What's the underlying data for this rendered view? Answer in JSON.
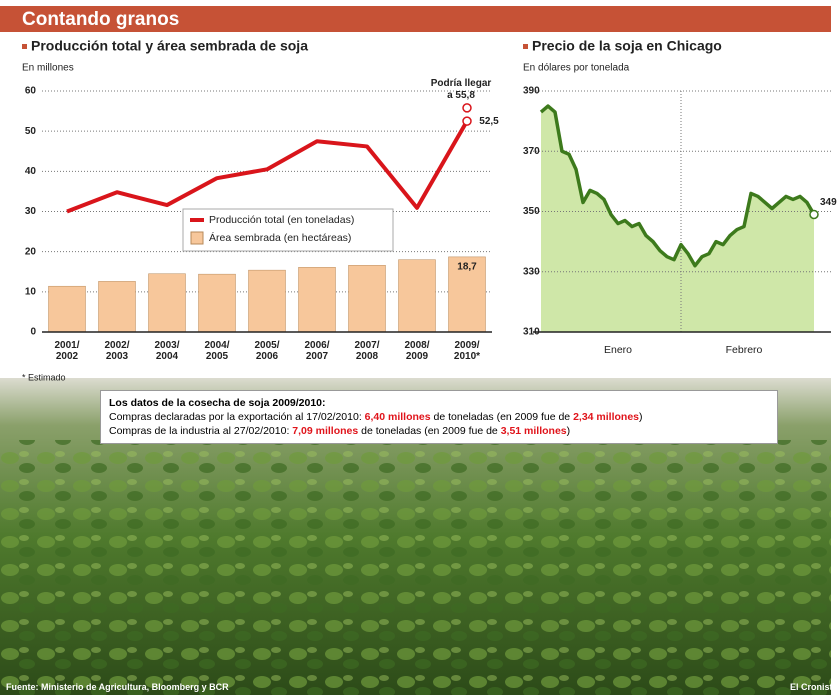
{
  "header": {
    "title": "Contando granos"
  },
  "chart_data": [
    {
      "type": "combo",
      "title": "Producción total y área sembrada de soja",
      "y_label": "En millones",
      "categories": [
        "2001/ 2002",
        "2002/ 2003",
        "2003/ 2004",
        "2004/ 2005",
        "2005/ 2006",
        "2006/ 2007",
        "2007/ 2008",
        "2008/ 2009",
        "2009/ 2010*"
      ],
      "series": [
        {
          "name": "Producción total (en toneladas)",
          "type": "line",
          "color": "#d9151b",
          "values": [
            30,
            34.8,
            31.6,
            38.3,
            40.5,
            47.5,
            46.2,
            30.9,
            52.5
          ],
          "value_labels": [
            null,
            null,
            null,
            null,
            null,
            null,
            null,
            null,
            "52,5"
          ]
        },
        {
          "name": "Área sembrada (en hectáreas)",
          "type": "bar",
          "color": "#f7c79b",
          "values": [
            11.4,
            12.6,
            14.5,
            14.4,
            15.4,
            16.1,
            16.6,
            18.0,
            18.7
          ],
          "value_labels": [
            null,
            null,
            null,
            null,
            null,
            null,
            null,
            null,
            "18,7"
          ]
        }
      ],
      "projection_value": 55.8,
      "annotation": "Podría llegar a 55,8",
      "ylim": [
        0,
        60
      ],
      "yticks": [
        0,
        10,
        20,
        30,
        40,
        50,
        60
      ],
      "grid": true,
      "note": "* Estimado"
    },
    {
      "type": "area",
      "title": "Precio de la soja en Chicago",
      "y_label": "En dólares por tonelada",
      "color": "#cfe7a8",
      "line_color": "#3d7a1c",
      "categories": [
        null,
        null,
        null,
        null,
        null,
        null,
        null,
        null,
        null,
        null,
        null,
        "Enero",
        null,
        null,
        null,
        null,
        null,
        null,
        null,
        null,
        null,
        null,
        null,
        null,
        null,
        null,
        null,
        null,
        null,
        "Febrero",
        null,
        null,
        null,
        null,
        null,
        null,
        null,
        null,
        null,
        null
      ],
      "values": [
        383,
        385,
        383,
        370,
        369,
        364,
        353,
        357,
        356,
        354,
        349,
        346,
        347,
        345,
        346,
        342,
        340,
        337,
        335,
        334,
        339,
        336,
        332,
        335,
        336,
        340,
        339,
        342,
        344,
        345,
        356,
        355,
        353,
        351,
        353,
        355,
        354,
        355,
        353,
        349
      ],
      "end_label": "349",
      "ylim": [
        310,
        390
      ],
      "yticks": [
        310,
        330,
        350,
        370,
        390
      ],
      "grid": true
    }
  ],
  "info": {
    "title": "Los datos de la cosecha de soja 2009/2010:",
    "lines": [
      [
        {
          "text": "Compras declaradas por la exportación al 17/02/2010: "
        },
        {
          "text": "6,40 millones",
          "red": true
        },
        {
          "text": " de toneladas (en 2009 fue de "
        },
        {
          "text": "2,34 millones",
          "red": true
        },
        {
          "text": ")"
        }
      ],
      [
        {
          "text": "Compras de la industria al 27/02/2010: "
        },
        {
          "text": "7,09 millones",
          "red": true
        },
        {
          "text": " de toneladas (en 2009 fue de "
        },
        {
          "text": "3,51 millones",
          "red": true
        },
        {
          "text": ")"
        }
      ]
    ]
  },
  "footer": {
    "source": "Fuente: Ministerio de Agricultura, Bloomberg y BCR",
    "brand": "El Cronista"
  }
}
